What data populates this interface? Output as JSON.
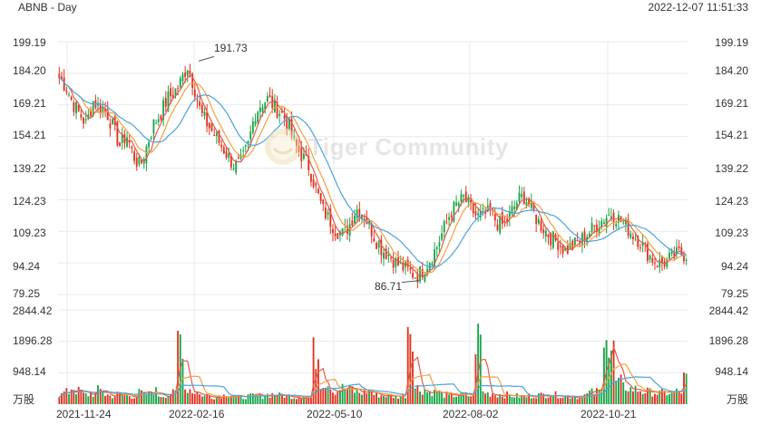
{
  "header": {
    "symbol_title": "ABNB - Day",
    "timestamp": "2022-12-07 11:51:33"
  },
  "watermark": {
    "text": "Tiger Community",
    "icon": "tiger-logo-icon"
  },
  "price_axis": {
    "labels": [
      "199.19",
      "184.20",
      "169.21",
      "154.21",
      "139.22",
      "124.23",
      "109.23",
      "94.24",
      "79.25"
    ]
  },
  "volume_axis": {
    "labels": [
      "2844.42",
      "1896.28",
      "948.14"
    ],
    "unit": "万股"
  },
  "x_axis": {
    "labels": [
      "2021-11-24",
      "2022-02-16",
      "2022-05-10",
      "2022-08-02",
      "2022-10-21"
    ]
  },
  "annotations": {
    "high_label": "191.73",
    "low_label": "86.71"
  },
  "colors": {
    "up": "#1aa64a",
    "down": "#e0341f",
    "ma_short": "#e25b4a",
    "ma_mid": "#f2a03d",
    "ma_long": "#4aa3df",
    "grid": "#e9e9e9"
  },
  "chart_data": {
    "type": "candlestick",
    "title": "ABNB - Day",
    "ylim": [
      79.25,
      199.19
    ],
    "volume_ylim": [
      0,
      2844.42
    ],
    "x_ticks": [
      "2021-11-24",
      "2022-02-16",
      "2022-05-10",
      "2022-08-02",
      "2022-10-21"
    ],
    "max_price": 191.73,
    "min_price": 86.71,
    "close_trend": [
      182,
      178,
      170,
      165,
      160,
      171,
      168,
      166,
      158,
      150,
      155,
      145,
      140,
      150,
      160,
      165,
      172,
      175,
      180,
      188,
      178,
      165,
      160,
      155,
      150,
      145,
      140,
      142,
      150,
      165,
      170,
      172,
      168,
      165,
      160,
      150,
      145,
      140,
      130,
      120,
      115,
      110,
      108,
      112,
      120,
      118,
      112,
      105,
      100,
      98,
      94,
      92,
      90,
      88,
      91,
      96,
      102,
      110,
      118,
      122,
      125,
      120,
      116,
      117,
      118,
      113,
      112,
      118,
      124,
      126,
      120,
      114,
      110,
      106,
      104,
      100,
      102,
      104,
      107,
      110,
      113,
      116,
      118,
      115,
      112,
      108,
      105,
      100,
      96,
      94,
      95,
      97,
      99,
      98
    ],
    "volume_trend": [
      300,
      380,
      520,
      420,
      300,
      330,
      450,
      300,
      260,
      320,
      280,
      250,
      370,
      300,
      420,
      280,
      300,
      350,
      2150,
      480,
      400,
      300,
      260,
      240,
      280,
      300,
      260,
      220,
      250,
      270,
      260,
      300,
      320,
      280,
      260,
      230,
      260,
      240,
      1600,
      700,
      650,
      420,
      520,
      480,
      400,
      370,
      420,
      300,
      280,
      260,
      250,
      280,
      2650,
      520,
      460,
      400,
      380,
      300,
      250,
      280,
      300,
      270,
      2100,
      380,
      340,
      310,
      300,
      280,
      260,
      240,
      270,
      290,
      300,
      330,
      300,
      260,
      250,
      230,
      300,
      380,
      400,
      2800,
      1700,
      700,
      540,
      480,
      450,
      400,
      380,
      350,
      360,
      370,
      400,
      820
    ]
  }
}
